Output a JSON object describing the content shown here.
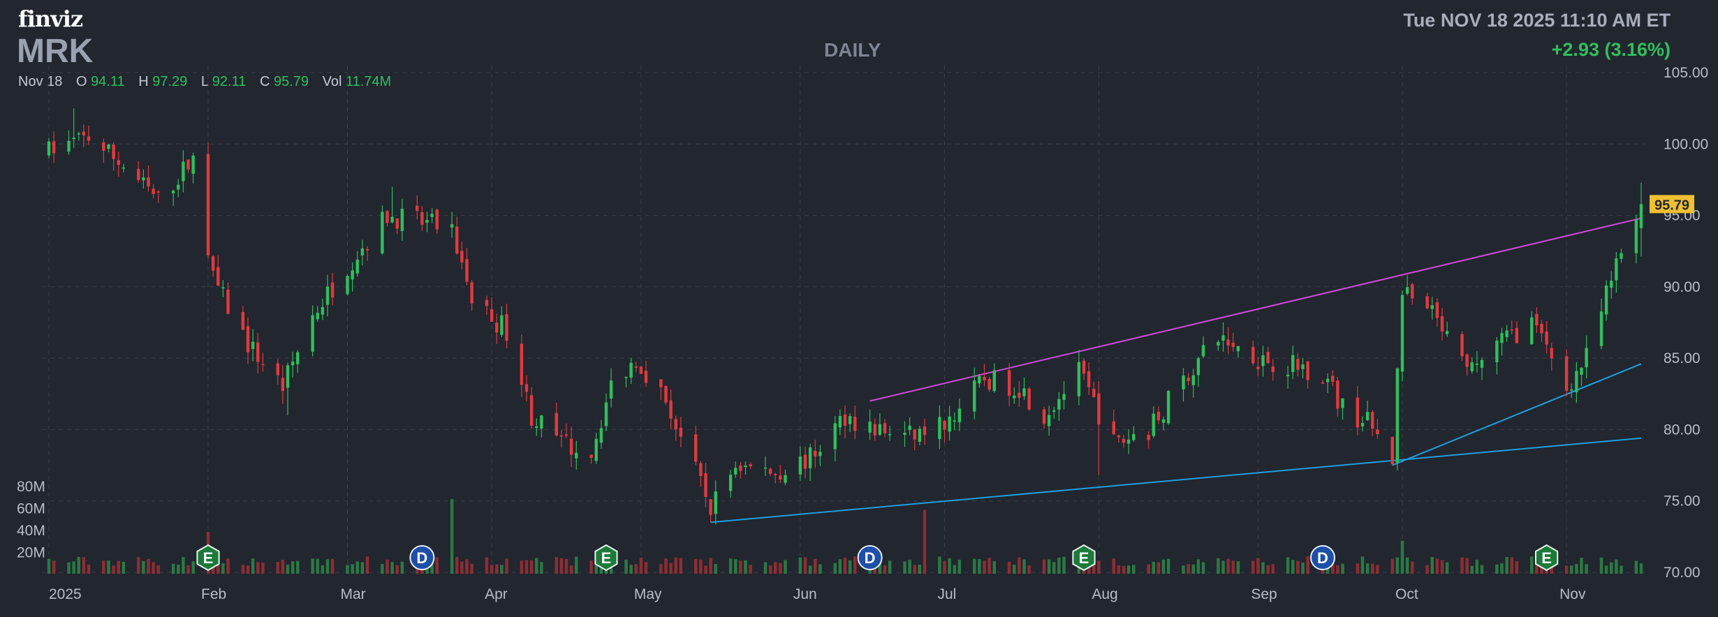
{
  "header": {
    "logo": "finviz",
    "ticker": "MRK",
    "timeframe": "DAILY",
    "datetime": "Tue NOV 18 2025 11:10 AM ET",
    "change": "+2.93 (3.16%)"
  },
  "ohlc": {
    "date": "Nov 18",
    "open_label": "O",
    "open": "94.11",
    "high_label": "H",
    "high": "97.29",
    "low_label": "L",
    "low": "92.11",
    "close_label": "C",
    "close": "95.79",
    "volume_label": "Vol",
    "volume": "11.74M"
  },
  "colors": {
    "up": "#2fbf5c",
    "down": "#e03a3e",
    "background": "#22262f",
    "grid": "#3a3f4b",
    "trend_upper": "#d04ad8",
    "trend_lower": "#1e9fe0",
    "last_price_bg": "#f0c030"
  },
  "chart_data": {
    "type": "candlestick",
    "title": "MRK",
    "timeframe": "DAILY",
    "x_tick_labels": [
      "2025",
      "Feb",
      "Mar",
      "Apr",
      "May",
      "Jun",
      "Jul",
      "Aug",
      "Sep",
      "Oct",
      "Nov"
    ],
    "y_tick_labels": [
      "105.00",
      "100.00",
      "95.00",
      "90.00",
      "85.00",
      "80.00",
      "75.00",
      "70.00"
    ],
    "ylim": [
      70,
      105
    ],
    "volume_tick_labels": [
      "80M",
      "60M",
      "40M",
      "20M"
    ],
    "volume_ylim": [
      0,
      80
    ],
    "last_price": "95.79",
    "grid": true,
    "x_range": [
      "2025-01-02",
      "2025-11-18"
    ],
    "month_starts": [
      "2025-01-02",
      "2025-02-03",
      "2025-03-03",
      "2025-04-01",
      "2025-05-01",
      "2025-06-02",
      "2025-07-01",
      "2025-08-01",
      "2025-09-02",
      "2025-10-01",
      "2025-11-03"
    ],
    "price_path": [
      [
        "2025-01-02",
        99.5
      ],
      [
        "2025-01-10",
        100.5
      ],
      [
        "2025-01-17",
        98.5
      ],
      [
        "2025-01-24",
        96.0
      ],
      [
        "2025-01-31",
        99.0
      ],
      [
        "2025-02-04",
        90.5
      ],
      [
        "2025-02-11",
        86.0
      ],
      [
        "2025-02-18",
        83.0
      ],
      [
        "2025-02-24",
        88.0
      ],
      [
        "2025-03-03",
        91.5
      ],
      [
        "2025-03-11",
        95.0
      ],
      [
        "2025-03-18",
        94.5
      ],
      [
        "2025-03-24",
        94.0
      ],
      [
        "2025-03-28",
        89.0
      ],
      [
        "2025-04-04",
        87.0
      ],
      [
        "2025-04-09",
        81.0
      ],
      [
        "2025-04-15",
        79.0
      ],
      [
        "2025-04-21",
        78.5
      ],
      [
        "2025-04-25",
        83.0
      ],
      [
        "2025-04-30",
        85.0
      ],
      [
        "2025-05-06",
        82.0
      ],
      [
        "2025-05-12",
        77.0
      ],
      [
        "2025-05-15",
        74.5
      ],
      [
        "2025-05-20",
        77.5
      ],
      [
        "2025-05-28",
        77.0
      ],
      [
        "2025-06-04",
        78.0
      ],
      [
        "2025-06-11",
        81.0
      ],
      [
        "2025-06-17",
        80.0
      ],
      [
        "2025-06-24",
        79.5
      ],
      [
        "2025-07-01",
        80.5
      ],
      [
        "2025-07-09",
        83.5
      ],
      [
        "2025-07-16",
        83.0
      ],
      [
        "2025-07-21",
        81.0
      ],
      [
        "2025-07-28",
        84.0
      ],
      [
        "2025-08-04",
        79.0
      ],
      [
        "2025-08-11",
        80.0
      ],
      [
        "2025-08-18",
        83.5
      ],
      [
        "2025-08-25",
        86.5
      ],
      [
        "2025-09-02",
        85.0
      ],
      [
        "2025-09-09",
        84.5
      ],
      [
        "2025-09-15",
        84.0
      ],
      [
        "2025-09-19",
        81.5
      ],
      [
        "2025-09-24",
        80.5
      ],
      [
        "2025-09-29",
        78.0
      ],
      [
        "2025-10-01",
        89.5
      ],
      [
        "2025-10-07",
        88.0
      ],
      [
        "2025-10-14",
        84.0
      ],
      [
        "2025-10-20",
        86.0
      ],
      [
        "2025-10-27",
        87.5
      ],
      [
        "2025-11-03",
        83.0
      ],
      [
        "2025-11-07",
        85.0
      ],
      [
        "2025-11-13",
        91.5
      ],
      [
        "2025-11-18",
        95.79
      ]
    ],
    "high_candles": [
      [
        "2025-01-07",
        102.5
      ],
      [
        "2025-03-12",
        97.0
      ],
      [
        "2025-08-26",
        87.5
      ],
      [
        "2025-10-02",
        90.8
      ],
      [
        "2025-11-18",
        97.29
      ]
    ],
    "low_candles": [
      [
        "2025-02-19",
        81.0
      ],
      [
        "2025-05-15",
        73.5
      ],
      [
        "2025-08-01",
        76.8
      ],
      [
        "2025-09-29",
        77.5
      ],
      [
        "2025-11-04",
        82.2
      ]
    ],
    "volume_spikes": [
      [
        "2025-02-03",
        38
      ],
      [
        "2025-03-24",
        68
      ],
      [
        "2025-06-27",
        58
      ],
      [
        "2025-10-01",
        30
      ]
    ],
    "trendlines": [
      {
        "color": "upper",
        "from": [
          "2025-06-16",
          82.0
        ],
        "to": [
          "2025-11-18",
          94.8
        ]
      },
      {
        "color": "lower",
        "from": [
          "2025-05-15",
          73.5
        ],
        "to": [
          "2025-11-18",
          79.4
        ]
      },
      {
        "color": "lower",
        "from": [
          "2025-09-29",
          77.5
        ],
        "to": [
          "2025-11-18",
          84.6
        ]
      }
    ],
    "events": [
      {
        "date": "2025-02-03",
        "label": "E"
      },
      {
        "date": "2025-03-18",
        "label": "D"
      },
      {
        "date": "2025-04-24",
        "label": "E"
      },
      {
        "date": "2025-06-16",
        "label": "D"
      },
      {
        "date": "2025-07-29",
        "label": "E"
      },
      {
        "date": "2025-09-15",
        "label": "D"
      },
      {
        "date": "2025-10-30",
        "label": "E"
      }
    ]
  }
}
